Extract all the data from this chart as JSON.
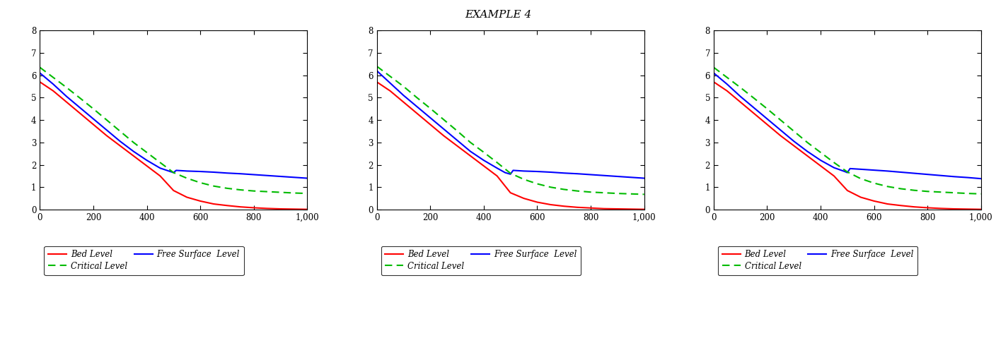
{
  "title": "EXAMPLE 4",
  "title_fontsize": 11,
  "xlim": [
    0,
    1000
  ],
  "ylim": [
    0,
    8
  ],
  "yticks": [
    0,
    1,
    2,
    3,
    4,
    5,
    6,
    7,
    8
  ],
  "xtick_labels": [
    "0",
    "200",
    "400",
    "600",
    "800",
    "1,000"
  ],
  "bed_color": "#ff0000",
  "surface_color": "#0000ff",
  "critical_color": "#00bb00",
  "bed_label": "Bed Level",
  "surface_label": "Free Surface  Level",
  "critical_label": "Critical Level",
  "subplots": [
    {
      "bed_x": [
        0,
        50,
        100,
        150,
        200,
        250,
        300,
        350,
        400,
        450,
        500,
        550,
        600,
        650,
        700,
        750,
        800,
        850,
        900,
        950,
        1000
      ],
      "bed_y": [
        5.7,
        5.3,
        4.8,
        4.3,
        3.8,
        3.3,
        2.85,
        2.4,
        1.95,
        1.5,
        0.85,
        0.55,
        0.38,
        0.25,
        0.18,
        0.12,
        0.08,
        0.05,
        0.03,
        0.02,
        0.01
      ],
      "surface_x": [
        0,
        50,
        100,
        150,
        200,
        250,
        300,
        350,
        400,
        450,
        500,
        510,
        550,
        600,
        650,
        700,
        750,
        800,
        850,
        900,
        950,
        1000
      ],
      "surface_y": [
        6.1,
        5.6,
        5.05,
        4.55,
        4.05,
        3.55,
        3.05,
        2.6,
        2.2,
        1.85,
        1.65,
        1.75,
        1.72,
        1.7,
        1.67,
        1.63,
        1.6,
        1.56,
        1.52,
        1.48,
        1.44,
        1.4
      ],
      "critical_x": [
        0,
        50,
        100,
        150,
        200,
        250,
        300,
        350,
        400,
        450,
        500,
        550,
        600,
        650,
        700,
        750,
        800,
        850,
        900,
        950,
        1000
      ],
      "critical_y": [
        6.35,
        5.9,
        5.45,
        4.98,
        4.5,
        4.0,
        3.5,
        3.0,
        2.55,
        2.1,
        1.65,
        1.4,
        1.2,
        1.05,
        0.95,
        0.88,
        0.83,
        0.8,
        0.77,
        0.74,
        0.72
      ]
    },
    {
      "bed_x": [
        0,
        50,
        100,
        150,
        200,
        250,
        300,
        350,
        400,
        450,
        500,
        550,
        600,
        650,
        700,
        750,
        800,
        850,
        900,
        950,
        1000
      ],
      "bed_y": [
        5.7,
        5.3,
        4.8,
        4.3,
        3.8,
        3.3,
        2.85,
        2.4,
        1.95,
        1.5,
        0.75,
        0.5,
        0.33,
        0.22,
        0.15,
        0.1,
        0.07,
        0.04,
        0.03,
        0.02,
        0.01
      ],
      "surface_x": [
        0,
        50,
        100,
        150,
        200,
        250,
        300,
        350,
        400,
        450,
        480,
        500,
        510,
        550,
        600,
        650,
        700,
        750,
        800,
        850,
        900,
        950,
        1000
      ],
      "surface_y": [
        6.2,
        5.65,
        5.1,
        4.6,
        4.1,
        3.6,
        3.1,
        2.6,
        2.2,
        1.85,
        1.65,
        1.58,
        1.75,
        1.72,
        1.7,
        1.67,
        1.63,
        1.6,
        1.56,
        1.52,
        1.48,
        1.44,
        1.4
      ],
      "critical_x": [
        0,
        50,
        100,
        150,
        200,
        250,
        300,
        350,
        400,
        450,
        500,
        550,
        600,
        650,
        700,
        750,
        800,
        850,
        900,
        950,
        1000
      ],
      "critical_y": [
        6.4,
        5.95,
        5.5,
        5.0,
        4.52,
        4.02,
        3.52,
        3.0,
        2.56,
        2.1,
        1.62,
        1.35,
        1.15,
        1.0,
        0.9,
        0.83,
        0.78,
        0.75,
        0.72,
        0.7,
        0.68
      ]
    },
    {
      "bed_x": [
        0,
        50,
        100,
        150,
        200,
        250,
        300,
        350,
        400,
        450,
        500,
        550,
        600,
        650,
        700,
        750,
        800,
        850,
        900,
        950,
        1000
      ],
      "bed_y": [
        5.7,
        5.3,
        4.8,
        4.3,
        3.8,
        3.3,
        2.85,
        2.4,
        1.95,
        1.5,
        0.85,
        0.55,
        0.38,
        0.25,
        0.18,
        0.12,
        0.08,
        0.05,
        0.03,
        0.02,
        0.01
      ],
      "surface_x": [
        0,
        50,
        100,
        150,
        200,
        250,
        300,
        350,
        400,
        450,
        490,
        500,
        510,
        550,
        600,
        650,
        700,
        750,
        800,
        850,
        900,
        950,
        1000
      ],
      "surface_y": [
        6.1,
        5.6,
        5.05,
        4.55,
        4.05,
        3.55,
        3.05,
        2.6,
        2.2,
        1.87,
        1.7,
        1.65,
        1.83,
        1.8,
        1.76,
        1.72,
        1.67,
        1.62,
        1.57,
        1.52,
        1.47,
        1.43,
        1.38
      ],
      "critical_x": [
        0,
        50,
        100,
        150,
        200,
        250,
        300,
        350,
        400,
        450,
        500,
        550,
        600,
        650,
        700,
        750,
        800,
        850,
        900,
        950,
        1000
      ],
      "critical_y": [
        6.35,
        5.9,
        5.45,
        4.98,
        4.5,
        4.0,
        3.5,
        3.0,
        2.55,
        2.1,
        1.68,
        1.38,
        1.18,
        1.03,
        0.93,
        0.86,
        0.81,
        0.78,
        0.75,
        0.72,
        0.7
      ]
    }
  ]
}
